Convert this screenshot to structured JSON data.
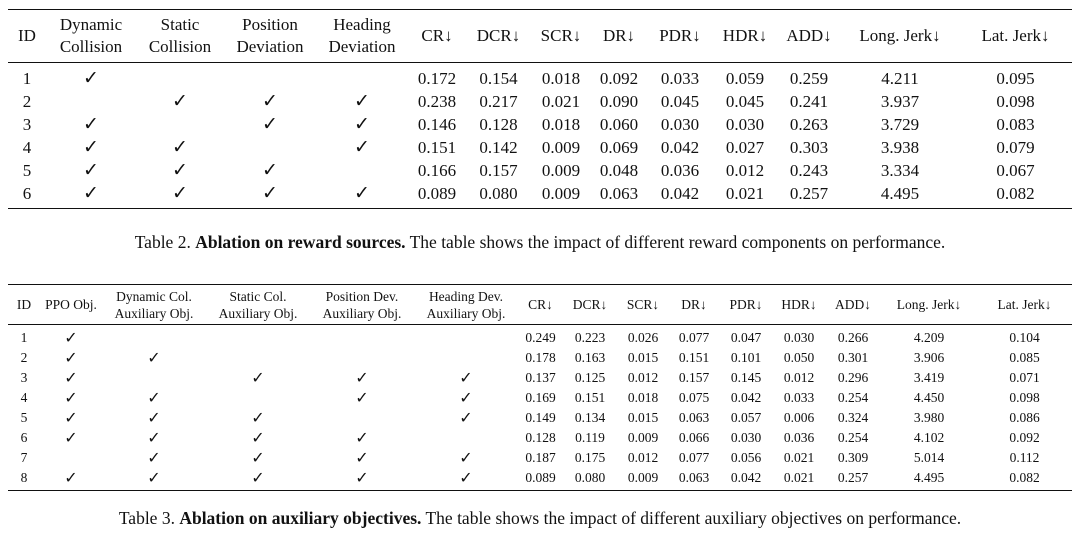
{
  "check_symbol": "✓",
  "table2": {
    "headers": [
      [
        "ID"
      ],
      [
        "Dynamic",
        "Collision"
      ],
      [
        "Static",
        "Collision"
      ],
      [
        "Position",
        "Deviation"
      ],
      [
        "Heading",
        "Deviation"
      ],
      [
        "CR↓"
      ],
      [
        "DCR↓"
      ],
      [
        "SCR↓"
      ],
      [
        "DR↓"
      ],
      [
        "PDR↓"
      ],
      [
        "HDR↓"
      ],
      [
        "ADD↓"
      ],
      [
        "Long. Jerk↓"
      ],
      [
        "Lat. Jerk↓"
      ]
    ],
    "rows": [
      {
        "id": "1",
        "flags": [
          true,
          false,
          false,
          false
        ],
        "values": [
          "0.172",
          "0.154",
          "0.018",
          "0.092",
          "0.033",
          "0.059",
          "0.259",
          "4.211",
          "0.095"
        ]
      },
      {
        "id": "2",
        "flags": [
          false,
          true,
          true,
          true
        ],
        "values": [
          "0.238",
          "0.217",
          "0.021",
          "0.090",
          "0.045",
          "0.045",
          "0.241",
          "3.937",
          "0.098"
        ]
      },
      {
        "id": "3",
        "flags": [
          true,
          false,
          true,
          true
        ],
        "values": [
          "0.146",
          "0.128",
          "0.018",
          "0.060",
          "0.030",
          "0.030",
          "0.263",
          "3.729",
          "0.083"
        ]
      },
      {
        "id": "4",
        "flags": [
          true,
          true,
          false,
          true
        ],
        "values": [
          "0.151",
          "0.142",
          "0.009",
          "0.069",
          "0.042",
          "0.027",
          "0.303",
          "3.938",
          "0.079"
        ]
      },
      {
        "id": "5",
        "flags": [
          true,
          true,
          true,
          false
        ],
        "values": [
          "0.166",
          "0.157",
          "0.009",
          "0.048",
          "0.036",
          "0.012",
          "0.243",
          "3.334",
          "0.067"
        ]
      },
      {
        "id": "6",
        "flags": [
          true,
          true,
          true,
          true
        ],
        "values": [
          "0.089",
          "0.080",
          "0.009",
          "0.063",
          "0.042",
          "0.021",
          "0.257",
          "4.495",
          "0.082"
        ]
      }
    ],
    "caption": {
      "prefix": "Table 2. ",
      "bold": "Ablation on reward sources.",
      "rest": " The table shows the impact of different reward components on performance."
    }
  },
  "table3": {
    "headers": [
      [
        "ID"
      ],
      [
        "PPO Obj."
      ],
      [
        "Dynamic Col.",
        "Auxiliary Obj."
      ],
      [
        "Static Col.",
        "Auxiliary Obj."
      ],
      [
        "Position Dev.",
        "Auxiliary Obj."
      ],
      [
        "Heading Dev.",
        "Auxiliary Obj."
      ],
      [
        "CR↓"
      ],
      [
        "DCR↓"
      ],
      [
        "SCR↓"
      ],
      [
        "DR↓"
      ],
      [
        "PDR↓"
      ],
      [
        "HDR↓"
      ],
      [
        "ADD↓"
      ],
      [
        "Long. Jerk↓"
      ],
      [
        "Lat. Jerk↓"
      ]
    ],
    "rows": [
      {
        "id": "1",
        "flags": [
          true,
          false,
          false,
          false,
          false
        ],
        "values": [
          "0.249",
          "0.223",
          "0.026",
          "0.077",
          "0.047",
          "0.030",
          "0.266",
          "4.209",
          "0.104"
        ]
      },
      {
        "id": "2",
        "flags": [
          true,
          true,
          false,
          false,
          false
        ],
        "values": [
          "0.178",
          "0.163",
          "0.015",
          "0.151",
          "0.101",
          "0.050",
          "0.301",
          "3.906",
          "0.085"
        ]
      },
      {
        "id": "3",
        "flags": [
          true,
          false,
          true,
          true,
          true
        ],
        "values": [
          "0.137",
          "0.125",
          "0.012",
          "0.157",
          "0.145",
          "0.012",
          "0.296",
          "3.419",
          "0.071"
        ]
      },
      {
        "id": "4",
        "flags": [
          true,
          true,
          false,
          true,
          true
        ],
        "values": [
          "0.169",
          "0.151",
          "0.018",
          "0.075",
          "0.042",
          "0.033",
          "0.254",
          "4.450",
          "0.098"
        ]
      },
      {
        "id": "5",
        "flags": [
          true,
          true,
          true,
          false,
          true
        ],
        "values": [
          "0.149",
          "0.134",
          "0.015",
          "0.063",
          "0.057",
          "0.006",
          "0.324",
          "3.980",
          "0.086"
        ]
      },
      {
        "id": "6",
        "flags": [
          true,
          true,
          true,
          true,
          false
        ],
        "values": [
          "0.128",
          "0.119",
          "0.009",
          "0.066",
          "0.030",
          "0.036",
          "0.254",
          "4.102",
          "0.092"
        ]
      },
      {
        "id": "7",
        "flags": [
          false,
          true,
          true,
          true,
          true
        ],
        "values": [
          "0.187",
          "0.175",
          "0.012",
          "0.077",
          "0.056",
          "0.021",
          "0.309",
          "5.014",
          "0.112"
        ]
      },
      {
        "id": "8",
        "flags": [
          true,
          true,
          true,
          true,
          true
        ],
        "values": [
          "0.089",
          "0.080",
          "0.009",
          "0.063",
          "0.042",
          "0.021",
          "0.257",
          "4.495",
          "0.082"
        ]
      }
    ],
    "caption": {
      "prefix": "Table 3. ",
      "bold": "Ablation on auxiliary objectives.",
      "rest": " The table shows the impact of different auxiliary objectives on performance."
    }
  }
}
